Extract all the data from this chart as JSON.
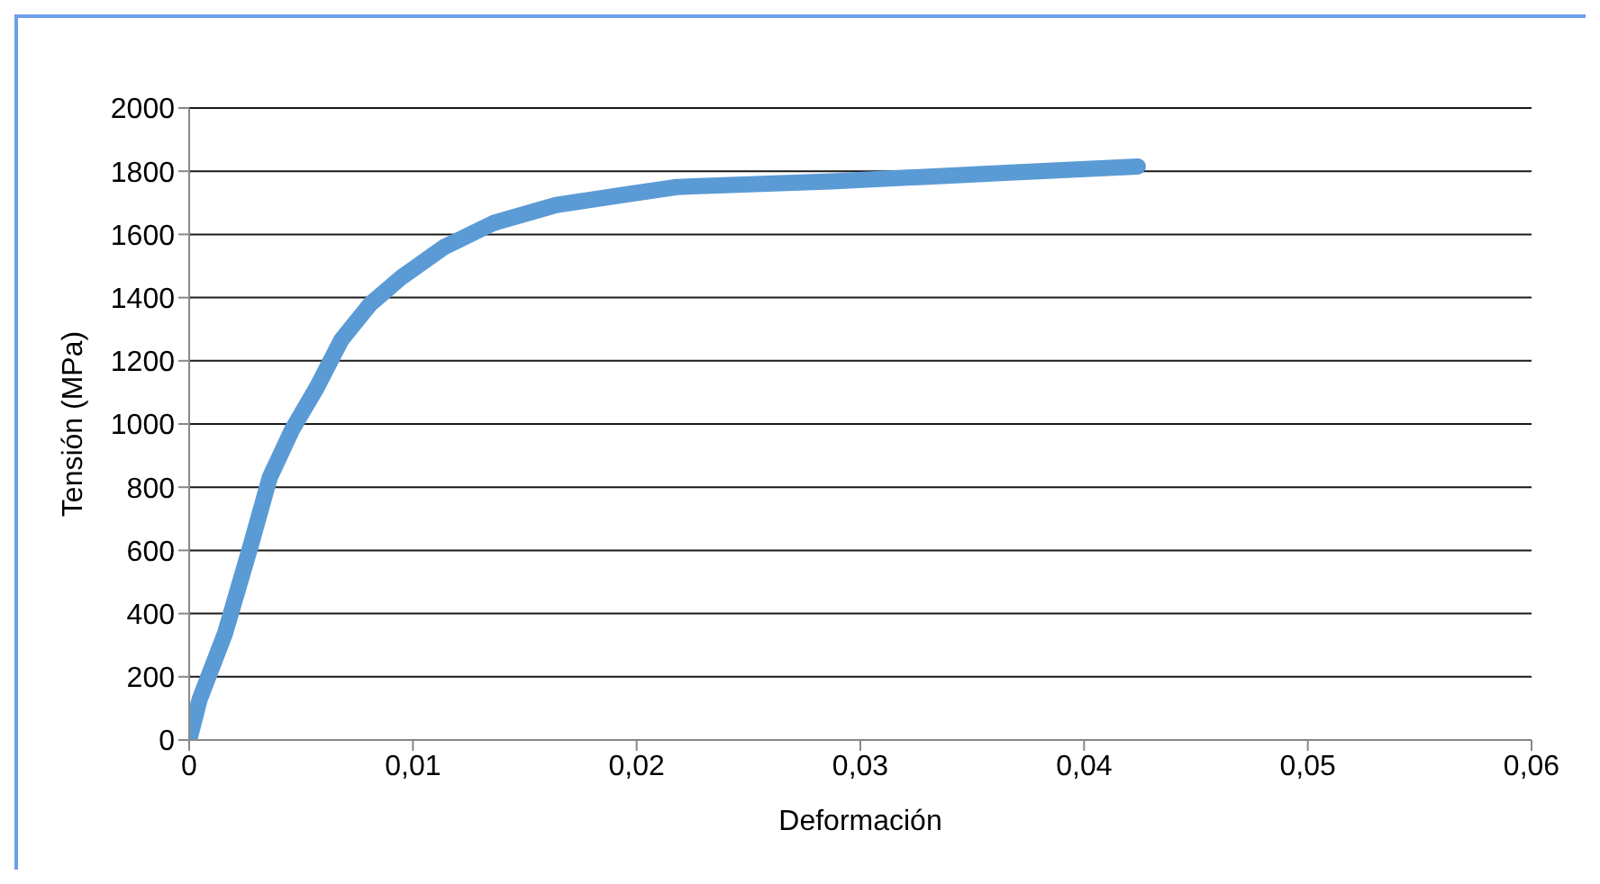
{
  "chart_data": {
    "type": "line",
    "xlabel": "Deformación",
    "ylabel": "Tensión (MPa)",
    "x": [
      0,
      0.00047,
      0.0016,
      0.0027,
      0.0036,
      0.0046,
      0.0057,
      0.0068,
      0.0081,
      0.0095,
      0.0114,
      0.0136,
      0.0164,
      0.0194,
      0.0218,
      0.0287,
      0.0369,
      0.0424
    ],
    "series": [
      {
        "color": "#5b9bd5",
        "values": [
          0,
          129,
          337,
          603,
          830,
          982,
          1115,
          1266,
          1380,
          1465,
          1560,
          1636,
          1693,
          1725,
          1750,
          1768,
          1796,
          1815
        ]
      }
    ],
    "xlim": [
      0,
      0.06
    ],
    "xticks": [
      {
        "value": 0,
        "label": "0"
      },
      {
        "value": 0.01,
        "label": "0,01"
      },
      {
        "value": 0.02,
        "label": "0,02"
      },
      {
        "value": 0.03,
        "label": "0,03"
      },
      {
        "value": 0.04,
        "label": "0,04"
      },
      {
        "value": 0.05,
        "label": "0,05"
      },
      {
        "value": 0.06,
        "label": "0,06"
      }
    ],
    "ylim": [
      0,
      2000
    ],
    "yticks": [
      0,
      200,
      400,
      600,
      800,
      1000,
      1200,
      1400,
      1600,
      1800,
      2000
    ],
    "grid": "y",
    "marker": "none",
    "line_style": "solid",
    "legend": false
  }
}
